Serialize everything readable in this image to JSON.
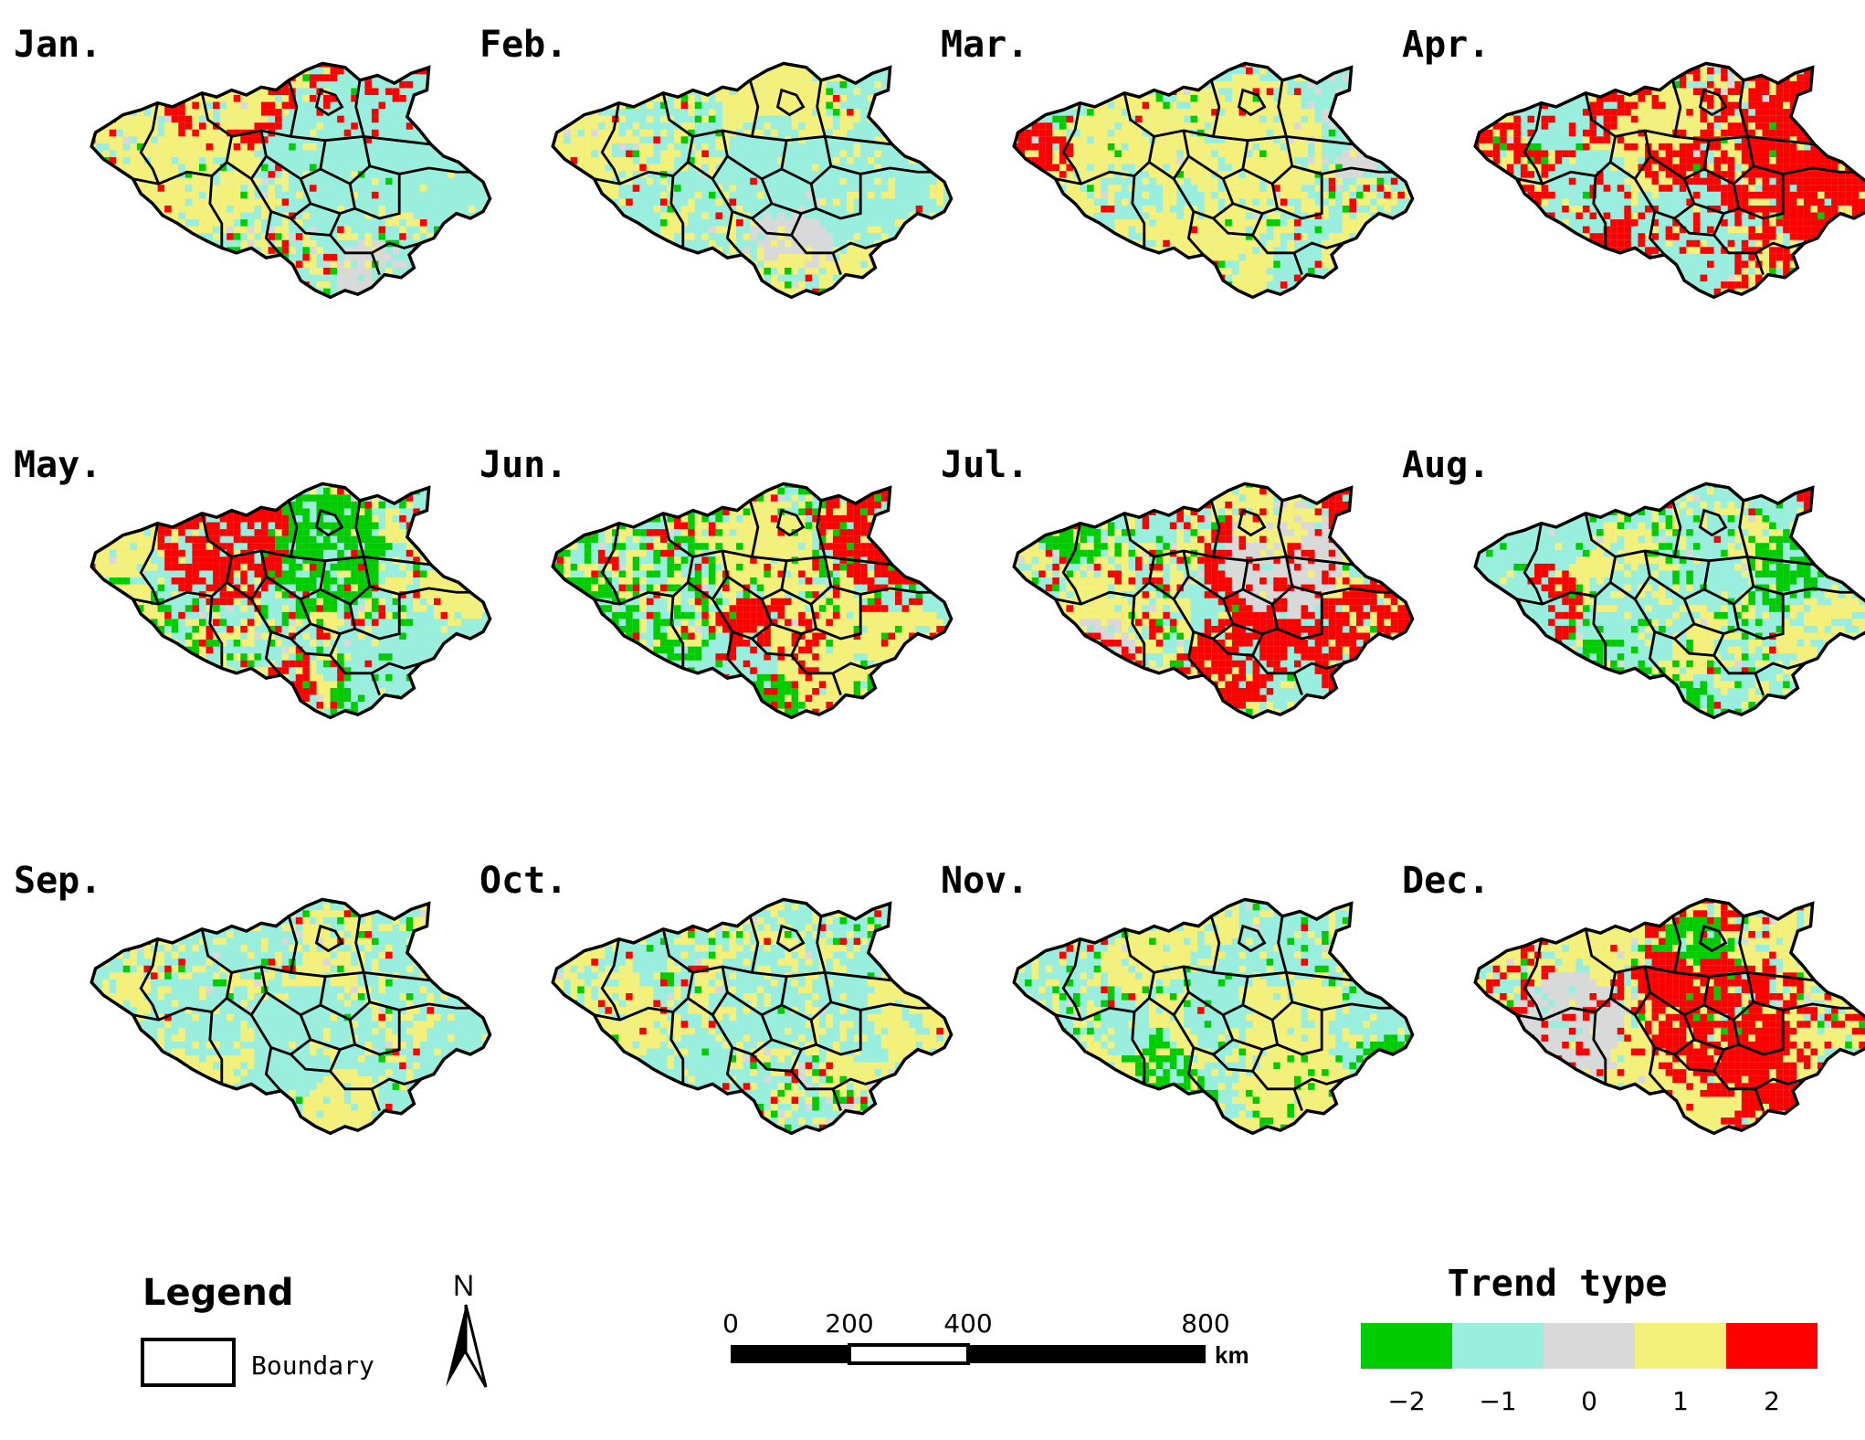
{
  "months": [
    "Jan.",
    "Feb.",
    "Mar.",
    "Apr.",
    "May.",
    "Jun.",
    "Jul.",
    "Aug.",
    "Sep.",
    "Oct.",
    "Nov.",
    "Dec."
  ],
  "colors": {
    "-2": "#00cc00",
    "-1": "#99eedd",
    "0": "#d9d9d9",
    "1": "#f5f07a",
    "2": "#ff0000",
    "boundary": "#000000"
  },
  "trend_mix": [
    {
      "month": "Jan.",
      "-2": 0.06,
      "-1": 0.4,
      "0": 0.04,
      "1": 0.38,
      "2": 0.12
    },
    {
      "month": "Feb.",
      "-2": 0.04,
      "-1": 0.5,
      "0": 0.02,
      "1": 0.38,
      "2": 0.06
    },
    {
      "month": "Mar.",
      "-2": 0.07,
      "-1": 0.42,
      "0": 0.03,
      "1": 0.38,
      "2": 0.1
    },
    {
      "month": "Apr.",
      "-2": 0.04,
      "-1": 0.2,
      "0": 0.02,
      "1": 0.3,
      "2": 0.44
    },
    {
      "month": "May.",
      "-2": 0.12,
      "-1": 0.42,
      "0": 0.03,
      "1": 0.33,
      "2": 0.1
    },
    {
      "month": "Jun.",
      "-2": 0.28,
      "-1": 0.3,
      "0": 0.02,
      "1": 0.26,
      "2": 0.14
    },
    {
      "month": "Jul.",
      "-2": 0.06,
      "-1": 0.36,
      "0": 0.02,
      "1": 0.4,
      "2": 0.16
    },
    {
      "month": "Aug.",
      "-2": 0.18,
      "-1": 0.58,
      "0": 0.03,
      "1": 0.19,
      "2": 0.02
    },
    {
      "month": "Sep.",
      "-2": 0.04,
      "-1": 0.4,
      "0": 0.04,
      "1": 0.46,
      "2": 0.06
    },
    {
      "month": "Oct.",
      "-2": 0.08,
      "-1": 0.5,
      "0": 0.06,
      "1": 0.31,
      "2": 0.05
    },
    {
      "month": "Nov.",
      "-2": 0.16,
      "-1": 0.48,
      "0": 0.03,
      "1": 0.3,
      "2": 0.03
    },
    {
      "month": "Dec.",
      "-2": 0.06,
      "-1": 0.2,
      "0": 0.04,
      "1": 0.42,
      "2": 0.28
    }
  ],
  "legend": {
    "title": "Legend",
    "boundary_label": "Boundary"
  },
  "north_arrow": {
    "label": "N"
  },
  "scale_bar": {
    "ticks": [
      "0",
      "200",
      "400",
      "800"
    ],
    "unit": "km"
  },
  "trend_type": {
    "title": "Trend type",
    "classes": [
      {
        "value": -2,
        "label": "−2"
      },
      {
        "value": -1,
        "label": "−1"
      },
      {
        "value": 0,
        "label": "0"
      },
      {
        "value": 1,
        "label": "1"
      },
      {
        "value": 2,
        "label": "2"
      }
    ]
  }
}
